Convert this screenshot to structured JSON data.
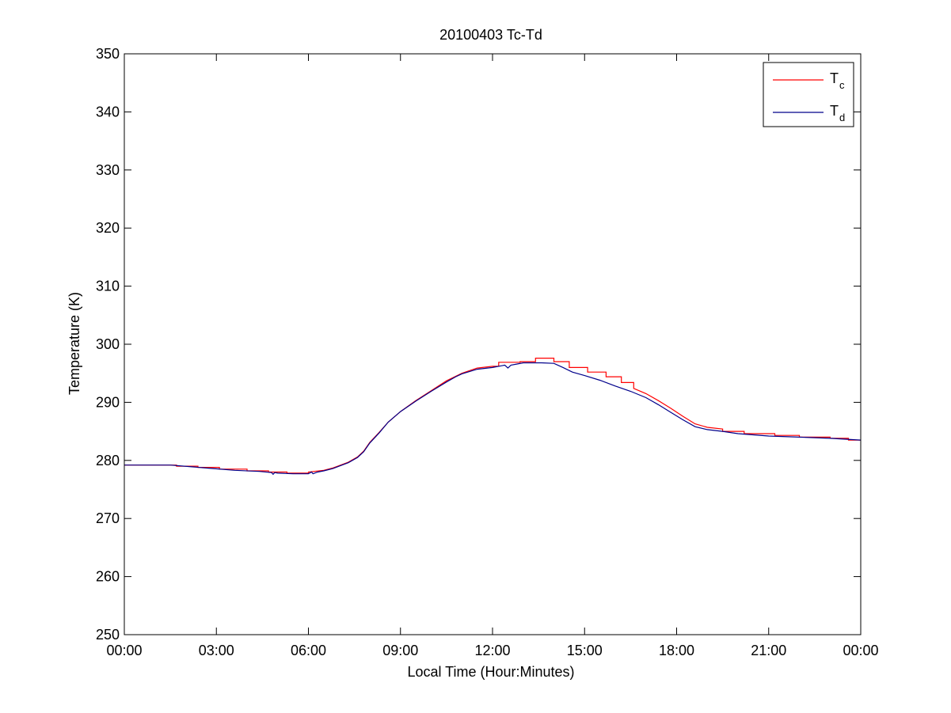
{
  "chart_data": {
    "type": "line",
    "title": "20100403 Tc-Td",
    "xlabel": "Local Time (Hour:Minutes)",
    "ylabel": "Temperature (K)",
    "xlim": [
      0,
      24
    ],
    "ylim": [
      250,
      350
    ],
    "x_ticks": [
      {
        "value": 0,
        "label": "00:00"
      },
      {
        "value": 3,
        "label": "03:00"
      },
      {
        "value": 6,
        "label": "06:00"
      },
      {
        "value": 9,
        "label": "09:00"
      },
      {
        "value": 12,
        "label": "12:00"
      },
      {
        "value": 15,
        "label": "15:00"
      },
      {
        "value": 18,
        "label": "18:00"
      },
      {
        "value": 21,
        "label": "21:00"
      },
      {
        "value": 24,
        "label": "00:00"
      }
    ],
    "y_ticks": [
      250,
      260,
      270,
      280,
      290,
      300,
      310,
      320,
      330,
      340,
      350
    ],
    "legend_position": "top-right",
    "grid": false,
    "series": [
      {
        "name": "T",
        "subscript": "c",
        "color": "#ff0000",
        "x": [
          0,
          1.7,
          1.7,
          2.4,
          2.4,
          3.1,
          3.1,
          4.0,
          4.0,
          4.7,
          4.7,
          5.3,
          5.3,
          6.0,
          6.0,
          6.5,
          6.8,
          7.0,
          7.3,
          7.6,
          7.8,
          8.0,
          8.3,
          8.6,
          9.0,
          9.5,
          10.0,
          10.5,
          11.0,
          11.5,
          12.0,
          12.2,
          12.2,
          12.9,
          12.9,
          13.4,
          13.4,
          14.0,
          14.0,
          14.5,
          14.5,
          15.1,
          15.1,
          15.7,
          15.7,
          16.2,
          16.2,
          16.6,
          16.6,
          17.0,
          17.4,
          17.8,
          18.2,
          18.6,
          19.0,
          19.5,
          19.5,
          20.2,
          20.2,
          21.2,
          21.2,
          22.0,
          22.0,
          23.0,
          23.0,
          23.6,
          23.6,
          24.0
        ],
        "values": [
          279.2,
          279.2,
          279.0,
          279.0,
          278.8,
          278.8,
          278.5,
          278.5,
          278.2,
          278.2,
          278.0,
          278.0,
          277.8,
          277.8,
          278.0,
          278.3,
          278.7,
          279.1,
          279.7,
          280.6,
          281.6,
          283.1,
          284.8,
          286.6,
          288.4,
          290.3,
          292.0,
          293.7,
          295.0,
          295.9,
          296.2,
          296.2,
          296.9,
          296.9,
          297.0,
          297.0,
          297.6,
          297.6,
          297.0,
          297.0,
          296.0,
          296.0,
          295.2,
          295.2,
          294.4,
          294.4,
          293.4,
          293.4,
          292.4,
          291.5,
          290.3,
          289.0,
          287.6,
          286.3,
          285.7,
          285.4,
          285.0,
          285.0,
          284.6,
          284.6,
          284.3,
          284.3,
          284.0,
          284.0,
          283.8,
          283.8,
          283.5,
          283.5
        ]
      },
      {
        "name": "T",
        "subscript": "d",
        "color": "#00008b",
        "x": [
          0,
          1.5,
          2.2,
          2.9,
          3.6,
          4.4,
          4.8,
          4.85,
          4.9,
          5.0,
          5.5,
          6.0,
          6.1,
          6.15,
          6.3,
          6.5,
          6.8,
          7.0,
          7.3,
          7.6,
          7.8,
          8.0,
          8.3,
          8.6,
          9.0,
          9.5,
          10.0,
          10.5,
          10.8,
          11.0,
          11.5,
          12.0,
          12.4,
          12.5,
          12.6,
          12.8,
          13.0,
          13.6,
          14.0,
          14.3,
          14.6,
          15.0,
          15.5,
          16.0,
          16.5,
          17.0,
          17.4,
          17.8,
          18.2,
          18.6,
          19.0,
          19.5,
          20.0,
          21.0,
          22.0,
          23.0,
          24.0
        ],
        "values": [
          279.2,
          279.2,
          278.9,
          278.6,
          278.3,
          278.1,
          277.9,
          277.6,
          277.9,
          277.8,
          277.7,
          277.7,
          278.0,
          277.7,
          278.0,
          278.2,
          278.6,
          279.0,
          279.6,
          280.5,
          281.5,
          283.0,
          284.7,
          286.6,
          288.4,
          290.2,
          291.9,
          293.5,
          294.4,
          294.9,
          295.7,
          296.0,
          296.4,
          295.9,
          296.4,
          296.6,
          296.8,
          296.8,
          296.7,
          296.0,
          295.2,
          294.6,
          293.8,
          292.8,
          291.9,
          290.8,
          289.6,
          288.3,
          287.0,
          285.8,
          285.3,
          285.0,
          284.6,
          284.2,
          284.0,
          283.8,
          283.5
        ]
      }
    ]
  }
}
